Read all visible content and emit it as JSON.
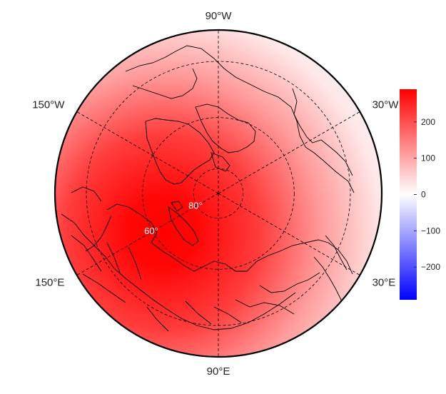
{
  "chart_data": {
    "type": "heatmap",
    "projection": "north-polar-stereographic",
    "title": "",
    "longitude_labels": [
      {
        "label": "90°W",
        "lon": -90
      },
      {
        "label": "150°W",
        "lon": -150
      },
      {
        "label": "150°E",
        "lon": 150
      },
      {
        "label": "90°E",
        "lon": 90
      },
      {
        "label": "30°E",
        "lon": 30
      },
      {
        "label": "30°W",
        "lon": -30
      }
    ],
    "latitude_labels": [
      {
        "label": "80°",
        "lat": 80
      },
      {
        "label": "60°",
        "lat": 60
      }
    ],
    "graticule": {
      "latitudes": [
        40,
        60,
        80
      ],
      "longitudes": [
        -150,
        -90,
        -30,
        30,
        90,
        150
      ],
      "style": "dashed"
    },
    "lat_min": 30,
    "field_maximum": {
      "lat": 70,
      "lon": 45,
      "value": 290
    },
    "colorbar": {
      "min": -290,
      "max": 290,
      "ticks": [
        200,
        100,
        0,
        -100,
        -200
      ],
      "tick_labels": [
        "200",
        "100",
        "0",
        "−100",
        "−200"
      ],
      "colors": {
        "low": "#0000ff",
        "mid": "#ffffff",
        "high": "#ff0000"
      }
    },
    "grid": true,
    "legend_position": "right"
  }
}
